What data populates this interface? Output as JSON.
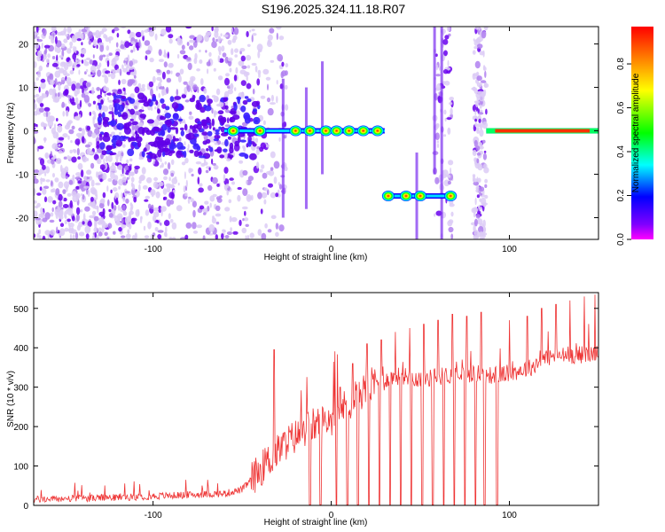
{
  "title": "S196.2025.324.11.18.R07",
  "chart_data": [
    {
      "type": "heatmap",
      "name": "spectrogram",
      "xlabel": "Height of straight line (km)",
      "ylabel": "Frequency (Hz)",
      "xlim": [
        -167,
        150
      ],
      "ylim": [
        -25,
        24
      ],
      "xticks": [
        -100,
        0,
        100
      ],
      "yticks": [
        -20,
        -10,
        0,
        10,
        20
      ],
      "colorbar": {
        "label": "Normalized spectral amplitude",
        "range": [
          0,
          0.97
        ],
        "ticks": [
          0.0,
          0.2,
          0.4,
          0.6,
          0.8
        ],
        "tick_labels": [
          "0.0",
          "0.2",
          "0.4",
          "0.6",
          "0.8"
        ],
        "colors": [
          "#ff0000",
          "#ff00ff",
          "#0000ff",
          "#00ffff",
          "#00ff00",
          "#ffff00",
          "#ff8000",
          "#ff0000"
        ]
      },
      "features": [
        {
          "name": "tone-center",
          "x_range": [
            -60,
            30
          ],
          "freq": 0,
          "peak_x": [
            -55,
            -40,
            -20,
            -12,
            -3,
            3,
            10,
            18,
            26
          ],
          "level": 0.85
        },
        {
          "name": "tone-offset",
          "x_range": [
            30,
            70
          ],
          "freq": -15,
          "peak_x": [
            32,
            42,
            50,
            67
          ],
          "level": 0.9
        },
        {
          "name": "tone-strong",
          "x_range": [
            87,
            150
          ],
          "freq": 0,
          "level": 0.95
        }
      ]
    },
    {
      "type": "line",
      "name": "snr",
      "xlabel": "Height of straight line (km)",
      "ylabel": "SNR (10 * v/v)",
      "xlim": [
        -167,
        150
      ],
      "ylim": [
        0,
        540
      ],
      "xticks": [
        -100,
        0,
        100
      ],
      "yticks": [
        0,
        100,
        200,
        300,
        400,
        500
      ],
      "color": "#ee3333",
      "baseline": [
        {
          "x": -167,
          "y": 15
        },
        {
          "x": -120,
          "y": 20
        },
        {
          "x": -90,
          "y": 25
        },
        {
          "x": -60,
          "y": 30
        },
        {
          "x": -50,
          "y": 40
        },
        {
          "x": -38,
          "y": 100
        },
        {
          "x": -25,
          "y": 160
        },
        {
          "x": -12,
          "y": 200
        },
        {
          "x": 0,
          "y": 220
        },
        {
          "x": 10,
          "y": 260
        },
        {
          "x": 20,
          "y": 300
        },
        {
          "x": 30,
          "y": 320
        },
        {
          "x": 40,
          "y": 330
        },
        {
          "x": 50,
          "y": 320
        },
        {
          "x": 65,
          "y": 330
        },
        {
          "x": 80,
          "y": 335
        },
        {
          "x": 90,
          "y": 330
        },
        {
          "x": 100,
          "y": 335
        },
        {
          "x": 112,
          "y": 350
        },
        {
          "x": 120,
          "y": 375
        },
        {
          "x": 130,
          "y": 380
        },
        {
          "x": 150,
          "y": 385
        }
      ],
      "dropouts_x": [
        -12,
        -6,
        3,
        9,
        15,
        21,
        27,
        33,
        39,
        45,
        51,
        57,
        63,
        69,
        75,
        81,
        86,
        93
      ],
      "spikes": [
        {
          "x": -32,
          "y": 395
        },
        {
          "x": 5,
          "y": 300
        },
        {
          "x": 12,
          "y": 360
        },
        {
          "x": 20,
          "y": 410
        },
        {
          "x": 28,
          "y": 420
        },
        {
          "x": 36,
          "y": 440
        },
        {
          "x": 44,
          "y": 450
        },
        {
          "x": 52,
          "y": 460
        },
        {
          "x": 60,
          "y": 470
        },
        {
          "x": 68,
          "y": 485
        },
        {
          "x": 76,
          "y": 480
        },
        {
          "x": 84,
          "y": 490
        },
        {
          "x": 100,
          "y": 470
        },
        {
          "x": 110,
          "y": 480
        },
        {
          "x": 118,
          "y": 500
        },
        {
          "x": 126,
          "y": 510
        },
        {
          "x": 134,
          "y": 520
        },
        {
          "x": 142,
          "y": 530
        },
        {
          "x": 148,
          "y": 535
        }
      ]
    }
  ]
}
